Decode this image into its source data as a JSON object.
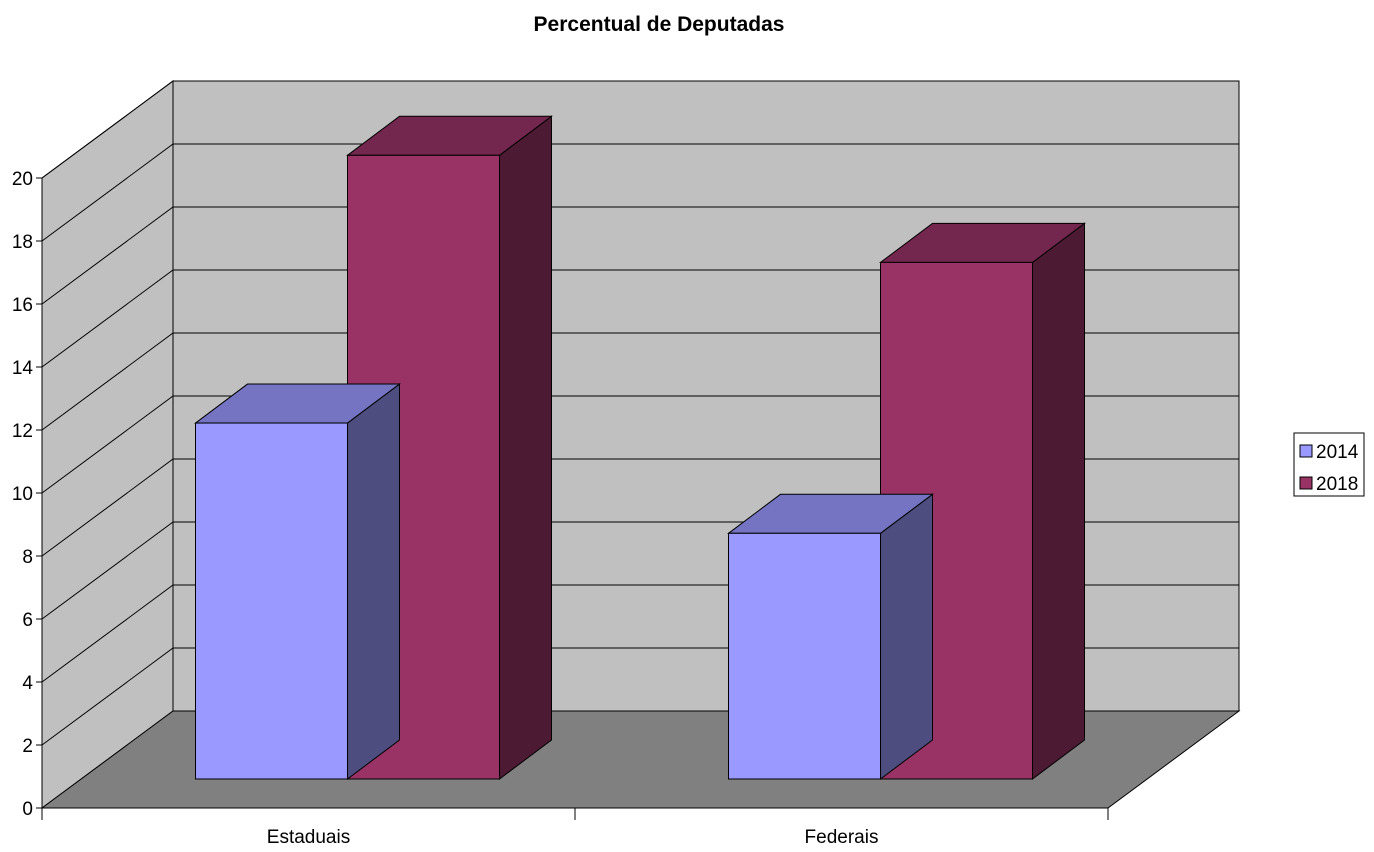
{
  "chart_data": {
    "type": "bar",
    "title": "Percentual de Deputadas",
    "categories": [
      "Estaduais",
      "Federais"
    ],
    "series": [
      {
        "name": "2014",
        "values": [
          11.3,
          7.8
        ],
        "color": "#9999ff"
      },
      {
        "name": "2018",
        "values": [
          19.8,
          16.4
        ],
        "color": "#993366"
      }
    ],
    "xlabel": "",
    "ylabel": "",
    "ylim": [
      0,
      20
    ],
    "y_ticks": [
      "0",
      "2",
      "4",
      "6",
      "8",
      "10",
      "12",
      "14",
      "16",
      "18",
      "20"
    ],
    "grid": true,
    "legend": "right",
    "projection": "3d",
    "colors": {
      "wall": "#c0c0c0",
      "floor": "#808080"
    }
  }
}
